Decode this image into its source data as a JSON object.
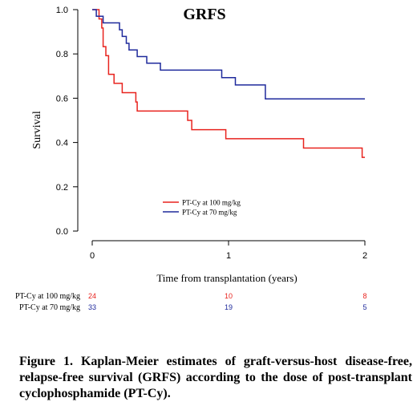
{
  "chart_data": {
    "type": "line",
    "title": "GRFS",
    "xlabel": "Time from transplantation (years)",
    "ylabel": "Survival",
    "xlim": [
      0,
      2
    ],
    "ylim": [
      0,
      1
    ],
    "x_ticks": [
      "0",
      "1",
      "2"
    ],
    "y_ticks": [
      "0.0",
      "0.2",
      "0.4",
      "0.6",
      "0.8",
      "1.0"
    ],
    "legend_position": "center",
    "series": [
      {
        "name": "PT-Cy at 100 mg/kg",
        "color": "#e8231e",
        "x": [
          0,
          0.05,
          0.07,
          0.08,
          0.1,
          0.12,
          0.16,
          0.22,
          0.32,
          0.33,
          0.7,
          0.73,
          0.98,
          1.55,
          1.98,
          2.0
        ],
        "y": [
          1.0,
          0.958,
          0.917,
          0.833,
          0.792,
          0.708,
          0.667,
          0.625,
          0.583,
          0.542,
          0.5,
          0.458,
          0.417,
          0.375,
          0.333,
          0.333
        ]
      },
      {
        "name": "PT-Cy at 70 mg/kg",
        "color": "#1f2a9c",
        "x": [
          0,
          0.03,
          0.05,
          0.07,
          0.08,
          0.2,
          0.22,
          0.25,
          0.27,
          0.33,
          0.4,
          0.5,
          0.63,
          0.85,
          0.95,
          1.05,
          1.27,
          2.0
        ],
        "y": [
          1.0,
          0.97,
          0.97,
          0.97,
          0.94,
          0.909,
          0.879,
          0.848,
          0.818,
          0.788,
          0.758,
          0.727,
          0.727,
          0.727,
          0.693,
          0.66,
          0.597,
          0.597
        ]
      }
    ],
    "at_risk": {
      "times": [
        "0",
        "1",
        "2"
      ],
      "rows": [
        {
          "label": "PT-Cy at 100 mg/kg",
          "color": "#e8231e",
          "counts": [
            "24",
            "10",
            "8"
          ]
        },
        {
          "label": "PT-Cy at 70 mg/kg",
          "color": "#1f2a9c",
          "counts": [
            "33",
            "19",
            "5"
          ]
        }
      ]
    }
  },
  "caption": "Figure 1. Kaplan-Meier estimates of graft-versus-host disease-free, relapse-free survival (GRFS) according to the dose of post-transplant cyclophosphamide (PT-Cy)."
}
